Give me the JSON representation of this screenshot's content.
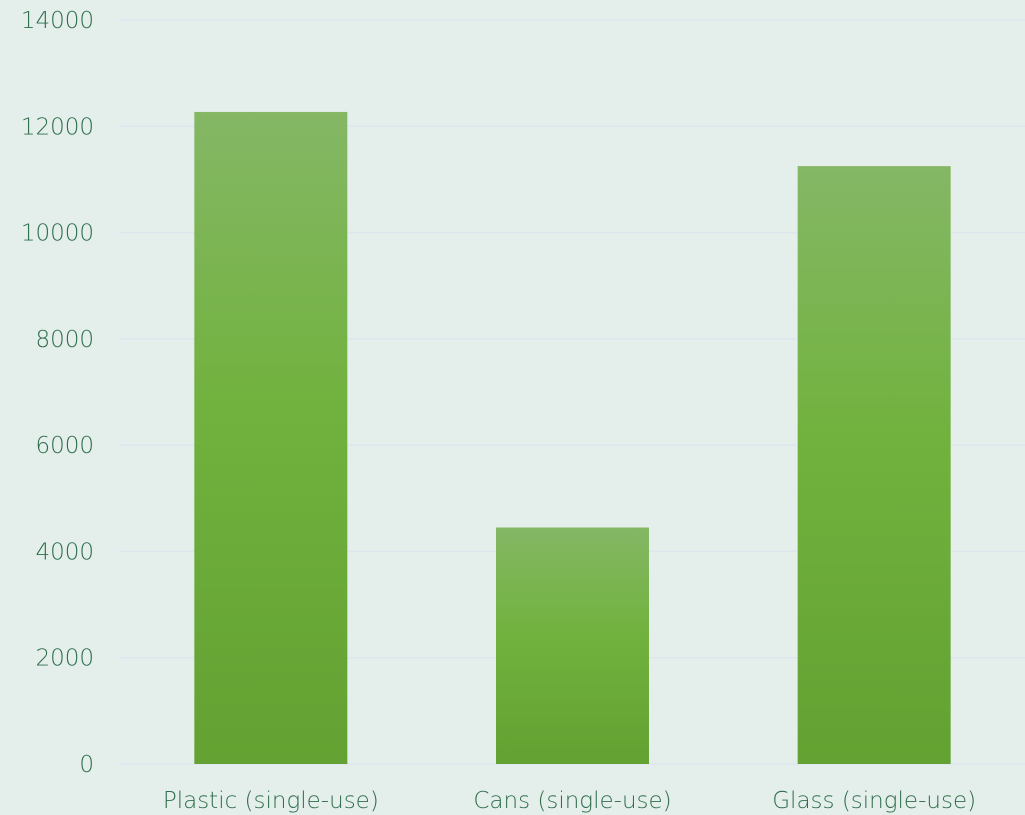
{
  "colors": {
    "background": "#e4eeea",
    "gridline": "#dde6ef",
    "axis_text": "#2e6e4c",
    "bar_top": "#85b765",
    "bar_mid": "#71b23e",
    "bar_bottom": "#63a132"
  },
  "chart_data": {
    "type": "bar",
    "title": "",
    "xlabel": "",
    "ylabel": "",
    "categories": [
      "Plastic (single-use)",
      "Cans (single-use)",
      "Glass (single-use)"
    ],
    "values": [
      12270,
      4450,
      11250
    ],
    "ylim": [
      0,
      14000
    ],
    "yticks": [
      0,
      2000,
      4000,
      6000,
      8000,
      10000,
      12000,
      14000
    ],
    "grid": true,
    "legend": "none"
  }
}
